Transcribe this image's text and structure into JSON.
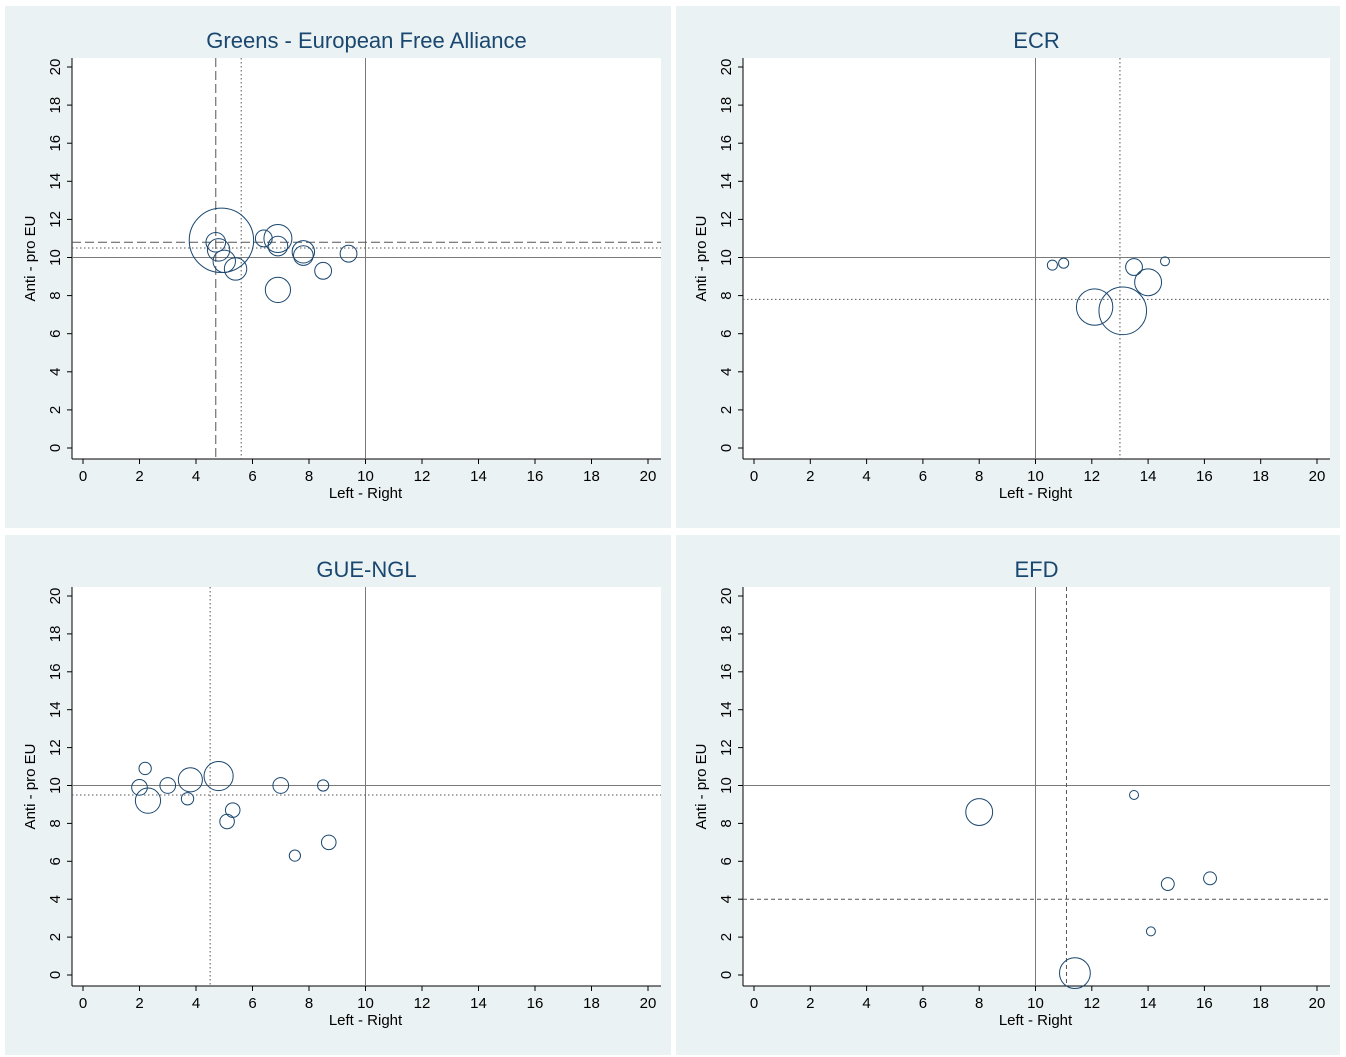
{
  "chart_data": [
    {
      "type": "scatter",
      "title": "Greens - European Free Alliance",
      "xlabel": "Left - Right",
      "ylabel": "Anti - pro EU",
      "xlim": [
        0,
        20
      ],
      "ylim": [
        0,
        20
      ],
      "xticks": [
        0,
        2,
        4,
        6,
        8,
        10,
        12,
        14,
        16,
        18,
        20
      ],
      "yticks": [
        0,
        2,
        4,
        6,
        8,
        10,
        12,
        14,
        16,
        18,
        20
      ],
      "grid": false,
      "reference_lines": [
        {
          "orient": "v",
          "value": 10,
          "style": "solid"
        },
        {
          "orient": "h",
          "value": 10,
          "style": "solid"
        },
        {
          "orient": "v",
          "value": 4.7,
          "style": "longdash"
        },
        {
          "orient": "h",
          "value": 10.8,
          "style": "longdash"
        },
        {
          "orient": "v",
          "value": 5.6,
          "style": "dot"
        },
        {
          "orient": "h",
          "value": 10.5,
          "style": "dot"
        }
      ],
      "points": [
        {
          "x": 4.9,
          "y": 10.9,
          "size": 11.5
        },
        {
          "x": 4.7,
          "y": 10.8,
          "size": 3.5
        },
        {
          "x": 4.8,
          "y": 10.4,
          "size": 4
        },
        {
          "x": 5.0,
          "y": 9.8,
          "size": 4
        },
        {
          "x": 5.4,
          "y": 9.4,
          "size": 4
        },
        {
          "x": 6.4,
          "y": 11.0,
          "size": 3
        },
        {
          "x": 6.9,
          "y": 11.0,
          "size": 5
        },
        {
          "x": 6.9,
          "y": 10.6,
          "size": 3.5
        },
        {
          "x": 7.8,
          "y": 10.3,
          "size": 4
        },
        {
          "x": 7.8,
          "y": 10.1,
          "size": 3.5
        },
        {
          "x": 6.9,
          "y": 8.3,
          "size": 4.5
        },
        {
          "x": 8.5,
          "y": 9.3,
          "size": 3
        },
        {
          "x": 9.4,
          "y": 10.2,
          "size": 3
        }
      ]
    },
    {
      "type": "scatter",
      "title": "ECR",
      "xlabel": "Left - Right",
      "ylabel": "Anti - pro EU",
      "xlim": [
        0,
        20
      ],
      "ylim": [
        0,
        20
      ],
      "xticks": [
        0,
        2,
        4,
        6,
        8,
        10,
        12,
        14,
        16,
        18,
        20
      ],
      "yticks": [
        0,
        2,
        4,
        6,
        8,
        10,
        12,
        14,
        16,
        18,
        20
      ],
      "grid": false,
      "reference_lines": [
        {
          "orient": "v",
          "value": 10,
          "style": "solid"
        },
        {
          "orient": "h",
          "value": 10,
          "style": "solid"
        },
        {
          "orient": "v",
          "value": 13.0,
          "style": "dot"
        },
        {
          "orient": "h",
          "value": 7.8,
          "style": "dot"
        }
      ],
      "points": [
        {
          "x": 10.6,
          "y": 9.6,
          "size": 1.8
        },
        {
          "x": 11.0,
          "y": 9.7,
          "size": 1.8
        },
        {
          "x": 13.5,
          "y": 9.5,
          "size": 3
        },
        {
          "x": 14.6,
          "y": 9.8,
          "size": 1.6
        },
        {
          "x": 14.0,
          "y": 8.7,
          "size": 4.8
        },
        {
          "x": 12.1,
          "y": 7.4,
          "size": 6.5
        },
        {
          "x": 13.1,
          "y": 7.2,
          "size": 8.5
        }
      ]
    },
    {
      "type": "scatter",
      "title": "GUE-NGL",
      "xlabel": "Left - Right",
      "ylabel": "Anti - pro EU",
      "xlim": [
        0,
        20
      ],
      "ylim": [
        0,
        20
      ],
      "xticks": [
        0,
        2,
        4,
        6,
        8,
        10,
        12,
        14,
        16,
        18,
        20
      ],
      "yticks": [
        0,
        2,
        4,
        6,
        8,
        10,
        12,
        14,
        16,
        18,
        20
      ],
      "grid": false,
      "reference_lines": [
        {
          "orient": "v",
          "value": 10,
          "style": "solid"
        },
        {
          "orient": "h",
          "value": 10,
          "style": "solid"
        },
        {
          "orient": "v",
          "value": 4.5,
          "style": "dot"
        },
        {
          "orient": "h",
          "value": 9.5,
          "style": "dot"
        }
      ],
      "points": [
        {
          "x": 2.2,
          "y": 10.9,
          "size": 2.2
        },
        {
          "x": 2.0,
          "y": 9.9,
          "size": 2.8
        },
        {
          "x": 2.3,
          "y": 9.2,
          "size": 4.5
        },
        {
          "x": 3.0,
          "y": 10.0,
          "size": 2.8
        },
        {
          "x": 3.8,
          "y": 10.3,
          "size": 4.3
        },
        {
          "x": 3.7,
          "y": 9.3,
          "size": 2.2
        },
        {
          "x": 4.8,
          "y": 10.5,
          "size": 5.2
        },
        {
          "x": 5.3,
          "y": 8.7,
          "size": 2.6
        },
        {
          "x": 5.1,
          "y": 8.1,
          "size": 2.6
        },
        {
          "x": 7.0,
          "y": 10.0,
          "size": 2.8
        },
        {
          "x": 8.5,
          "y": 10.0,
          "size": 2.0
        },
        {
          "x": 8.7,
          "y": 7.0,
          "size": 2.6
        },
        {
          "x": 7.5,
          "y": 6.3,
          "size": 2.0
        }
      ]
    },
    {
      "type": "scatter",
      "title": "EFD",
      "xlabel": "Left - Right",
      "ylabel": "Anti - pro EU",
      "xlim": [
        0,
        20
      ],
      "ylim": [
        0,
        20
      ],
      "xticks": [
        0,
        2,
        4,
        6,
        8,
        10,
        12,
        14,
        16,
        18,
        20
      ],
      "yticks": [
        0,
        2,
        4,
        6,
        8,
        10,
        12,
        14,
        16,
        18,
        20
      ],
      "grid": false,
      "reference_lines": [
        {
          "orient": "v",
          "value": 10,
          "style": "solid"
        },
        {
          "orient": "h",
          "value": 10,
          "style": "solid"
        },
        {
          "orient": "v",
          "value": 11.1,
          "style": "dash"
        },
        {
          "orient": "h",
          "value": 4.0,
          "style": "dash"
        }
      ],
      "points": [
        {
          "x": 8.0,
          "y": 8.6,
          "size": 4.8
        },
        {
          "x": 13.5,
          "y": 9.5,
          "size": 1.6
        },
        {
          "x": 14.7,
          "y": 4.8,
          "size": 2.3
        },
        {
          "x": 16.2,
          "y": 5.1,
          "size": 2.3
        },
        {
          "x": 14.1,
          "y": 2.3,
          "size": 1.6
        },
        {
          "x": 11.4,
          "y": 0.1,
          "size": 5.5
        }
      ]
    }
  ],
  "colors": {
    "background": "#eaf2f3",
    "plot_background": "#ffffff",
    "title": "#1a476f",
    "marker": "#1a476f",
    "reference": "#555555"
  }
}
